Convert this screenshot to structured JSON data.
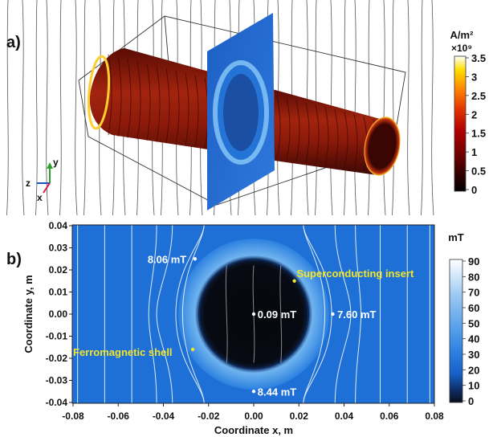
{
  "panel_a": {
    "label": "a)",
    "colorbar": {
      "unit": "A/m²",
      "multiplier": "×10⁹",
      "ticks": [
        "3.5",
        "3",
        "2.5",
        "2",
        "1.5",
        "1",
        "0.5",
        "0"
      ],
      "colormap": [
        "#000000",
        "#3a0000",
        "#7a0000",
        "#b00000",
        "#e03000",
        "#ff8000",
        "#ffe000",
        "#ffffff"
      ]
    },
    "axes_triad": {
      "x": "x",
      "y": "y",
      "z": "z"
    },
    "colors": {
      "cylinder": "#8c1a0a",
      "cylinder_dark": "#4a0a05",
      "plane": "#2a6fd4"
    }
  },
  "panel_b": {
    "label": "b)",
    "colorbar": {
      "unit": "mT",
      "ticks": [
        "90",
        "80",
        "70",
        "60",
        "50",
        "40",
        "30",
        "20",
        "10",
        "0"
      ],
      "colormap": [
        "#0a0f1e",
        "#0c2a5e",
        "#1460c8",
        "#2b80e0",
        "#5ea6ec",
        "#9cc9f3",
        "#d8eafb",
        "#ffffff"
      ]
    },
    "xlabel": "Coordinate x, m",
    "ylabel": "Coordinate y, m",
    "xticks": [
      "-0.08",
      "-0.06",
      "-0.04",
      "-0.02",
      "0.00",
      "0.02",
      "0.04",
      "0.06",
      "0.08"
    ],
    "yticks": [
      "0.04",
      "0.03",
      "0.02",
      "0.01",
      "0.00",
      "-0.01",
      "-0.02",
      "-0.03",
      "-0.04"
    ],
    "annotations": [
      {
        "id": "upper-left",
        "text": "8.06 mT",
        "x": -0.026,
        "y": 0.025,
        "tx": -0.047,
        "ty": 0.025,
        "color": "#ffffff",
        "anchor": "start"
      },
      {
        "id": "center",
        "text": "0.09 mT",
        "x": 0.0,
        "y": 0.0,
        "tx": 0.0017,
        "ty": 0.0,
        "color": "#ffffff",
        "anchor": "start"
      },
      {
        "id": "right",
        "text": "7.60 mT",
        "x": 0.035,
        "y": 0.0,
        "tx": 0.037,
        "ty": 0.0,
        "color": "#ffffff",
        "anchor": "start"
      },
      {
        "id": "bottom",
        "text": "8.44 mT",
        "x": 0.0,
        "y": -0.035,
        "tx": 0.0017,
        "ty": -0.035,
        "color": "#ffffff",
        "anchor": "start"
      },
      {
        "id": "superconducting",
        "text": "Superconducting insert",
        "x": 0.018,
        "y": 0.015,
        "tx": 0.019,
        "ty": 0.0185,
        "color": "#f2e52a",
        "anchor": "start"
      },
      {
        "id": "ferromagnetic",
        "text": "Ferromagnetic shell",
        "x": -0.027,
        "y": -0.016,
        "tx": -0.08,
        "ty": -0.017,
        "color": "#f2e52a",
        "anchor": "start"
      }
    ],
    "colors": {
      "background_field": "#1e6fd6",
      "inner_core": "#07090f",
      "ring": "#55a3ec",
      "text_annot": "#f2e52a"
    }
  }
}
